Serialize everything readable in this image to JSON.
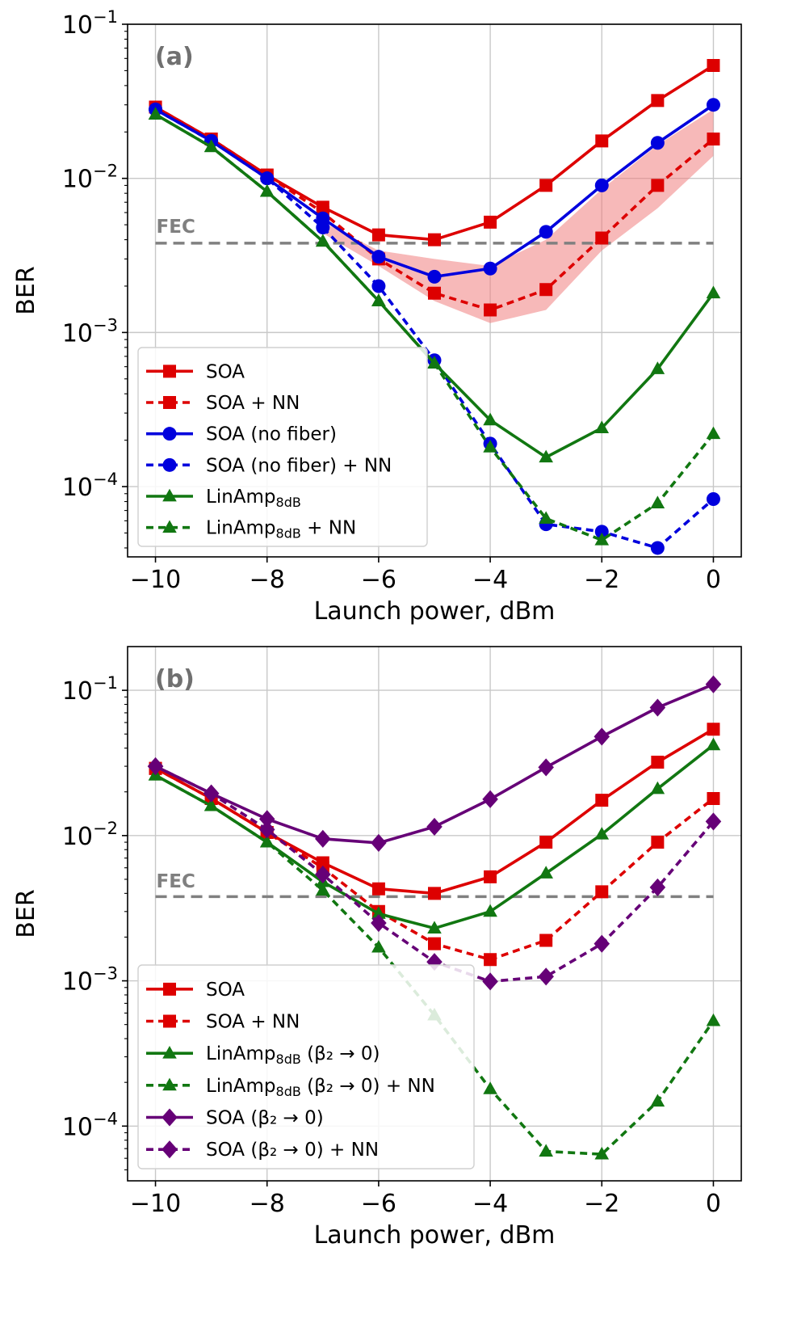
{
  "chart_data": [
    {
      "type": "line",
      "panel_label": "(a)",
      "xlabel": "Launch power, dBm",
      "ylabel": "BER",
      "yscale": "log",
      "xlim": [
        -10.5,
        0.5
      ],
      "ylim": [
        3.5e-05,
        0.1
      ],
      "grid": true,
      "xticks": [
        -10,
        -8,
        -6,
        -4,
        -2,
        0
      ],
      "xtick_labels": [
        "−10",
        "−8",
        "−6",
        "−4",
        "−2",
        "0"
      ],
      "yticks": [
        0.1,
        0.01,
        0.001,
        0.0001
      ],
      "ytick_labels": [
        {
          "base": "10",
          "exp": "−1"
        },
        {
          "base": "10",
          "exp": "−2"
        },
        {
          "base": "10",
          "exp": "−3"
        },
        {
          "base": "10",
          "exp": "−4"
        }
      ],
      "fec": {
        "label": "FEC",
        "value": 0.0038,
        "color": "#808080"
      },
      "band": {
        "color": "#f08080",
        "x": [
          -7,
          -6,
          -5,
          -4,
          -3,
          -2,
          -1,
          0
        ],
        "upper": [
          0.0052,
          0.0034,
          0.003,
          0.0027,
          0.004,
          0.0085,
          0.0165,
          0.028
        ],
        "lower": [
          0.0044,
          0.0027,
          0.0016,
          0.00115,
          0.0014,
          0.0034,
          0.0064,
          0.014
        ]
      },
      "legend_position": "lower-left",
      "series": [
        {
          "name": "SOA",
          "sub": "",
          "suffix": "",
          "color": "#dd0000",
          "marker": "square",
          "dashed": false,
          "x": [
            -10,
            -9,
            -8,
            -7,
            -6,
            -5,
            -4,
            -3,
            -2,
            -1,
            0
          ],
          "values": [
            0.029,
            0.018,
            0.0105,
            0.0065,
            0.0043,
            0.004,
            0.0052,
            0.009,
            0.0175,
            0.032,
            0.054
          ]
        },
        {
          "name": "SOA + NN",
          "sub": "",
          "suffix": "",
          "color": "#dd0000",
          "marker": "square",
          "dashed": true,
          "x": [
            -10,
            -9,
            -8,
            -7,
            -6,
            -5,
            -4,
            -3,
            -2,
            -1,
            0
          ],
          "values": [
            0.029,
            0.018,
            0.0105,
            0.006,
            0.003,
            0.0018,
            0.0014,
            0.0019,
            0.0041,
            0.009,
            0.018
          ]
        },
        {
          "name": "SOA (no fiber)",
          "sub": "",
          "suffix": "",
          "color": "#0000dd",
          "marker": "circle",
          "dashed": false,
          "x": [
            -10,
            -9,
            -8,
            -7,
            -6,
            -5,
            -4,
            -3,
            -2,
            -1,
            0
          ],
          "values": [
            0.028,
            0.0175,
            0.01,
            0.0055,
            0.0031,
            0.0023,
            0.0026,
            0.0045,
            0.009,
            0.017,
            0.03
          ]
        },
        {
          "name": "SOA (no fiber) + NN",
          "sub": "",
          "suffix": "",
          "color": "#0000dd",
          "marker": "circle",
          "dashed": true,
          "x": [
            -10,
            -9,
            -8,
            -7,
            -6,
            -5,
            -4,
            -3,
            -2,
            -1,
            0
          ],
          "values": [
            0.028,
            0.0175,
            0.01,
            0.0048,
            0.002,
            0.00066,
            0.00019,
            5.7e-05,
            5.1e-05,
            4e-05,
            8.3e-05
          ]
        },
        {
          "name": "LinAmp",
          "sub": "8dB",
          "suffix": "",
          "color": "#117711",
          "marker": "triangle",
          "dashed": false,
          "x": [
            -10,
            -9,
            -8,
            -7,
            -6,
            -5,
            -4,
            -3,
            -2,
            -1,
            0
          ],
          "values": [
            0.026,
            0.016,
            0.0082,
            0.0039,
            0.0016,
            0.00063,
            0.00027,
            0.000155,
            0.00024,
            0.00058,
            0.0018
          ]
        },
        {
          "name": "LinAmp",
          "sub": "8dB",
          "suffix": " + NN",
          "color": "#117711",
          "marker": "triangle",
          "dashed": true,
          "x": [
            -10,
            -9,
            -8,
            -7,
            -6,
            -5,
            -4,
            -3,
            -2,
            -1,
            0
          ],
          "values": [
            0.026,
            0.016,
            0.0082,
            0.0039,
            0.0016,
            0.00063,
            0.00018,
            6.2e-05,
            4.5e-05,
            7.8e-05,
            0.00022
          ]
        }
      ]
    },
    {
      "type": "line",
      "panel_label": "(b)",
      "xlabel": "Launch power, dBm",
      "ylabel": "BER",
      "yscale": "log",
      "xlim": [
        -10.5,
        0.5
      ],
      "ylim": [
        4.2e-05,
        0.2
      ],
      "grid": true,
      "xticks": [
        -10,
        -8,
        -6,
        -4,
        -2,
        0
      ],
      "xtick_labels": [
        "−10",
        "−8",
        "−6",
        "−4",
        "−2",
        "0"
      ],
      "yticks": [
        0.1,
        0.01,
        0.001,
        0.0001
      ],
      "ytick_labels": [
        {
          "base": "10",
          "exp": "−1"
        },
        {
          "base": "10",
          "exp": "−2"
        },
        {
          "base": "10",
          "exp": "−3"
        },
        {
          "base": "10",
          "exp": "−4"
        }
      ],
      "fec": {
        "label": "FEC",
        "value": 0.0038,
        "color": "#808080"
      },
      "legend_position": "lower-left",
      "series": [
        {
          "name": "SOA",
          "sub": "",
          "suffix": "",
          "color": "#dd0000",
          "marker": "square",
          "dashed": false,
          "x": [
            -10,
            -9,
            -8,
            -7,
            -6,
            -5,
            -4,
            -3,
            -2,
            -1,
            0
          ],
          "values": [
            0.029,
            0.018,
            0.0105,
            0.0065,
            0.0043,
            0.004,
            0.0052,
            0.009,
            0.0175,
            0.032,
            0.054
          ]
        },
        {
          "name": "SOA + NN",
          "sub": "",
          "suffix": "",
          "color": "#dd0000",
          "marker": "square",
          "dashed": true,
          "x": [
            -10,
            -9,
            -8,
            -7,
            -6,
            -5,
            -4,
            -3,
            -2,
            -1,
            0
          ],
          "values": [
            0.029,
            0.018,
            0.0105,
            0.006,
            0.003,
            0.0018,
            0.0014,
            0.0019,
            0.0041,
            0.009,
            0.018
          ]
        },
        {
          "name": "LinAmp",
          "sub": "8dB",
          "suffix": " (β₂ → 0)",
          "color": "#117711",
          "marker": "triangle",
          "dashed": false,
          "x": [
            -10,
            -9,
            -8,
            -7,
            -6,
            -5,
            -4,
            -3,
            -2,
            -1,
            0
          ],
          "values": [
            0.026,
            0.016,
            0.009,
            0.0048,
            0.0029,
            0.0023,
            0.003,
            0.0055,
            0.0102,
            0.021,
            0.042
          ]
        },
        {
          "name": "LinAmp",
          "sub": "8dB",
          "suffix": " (β₂ → 0) + NN",
          "color": "#117711",
          "marker": "triangle",
          "dashed": true,
          "x": [
            -10,
            -9,
            -8,
            -7,
            -6,
            -5,
            -4,
            -3,
            -2,
            -1,
            0
          ],
          "values": [
            0.026,
            0.016,
            0.009,
            0.0042,
            0.0017,
            0.00058,
            0.00018,
            6.7e-05,
            6.4e-05,
            0.000148,
            0.00053
          ]
        },
        {
          "name": "SOA (β₂ → 0)",
          "sub": "",
          "suffix": "",
          "color": "#660077",
          "marker": "diamond",
          "dashed": false,
          "x": [
            -10,
            -9,
            -8,
            -7,
            -6,
            -5,
            -4,
            -3,
            -2,
            -1,
            0
          ],
          "values": [
            0.03,
            0.0195,
            0.013,
            0.0095,
            0.0089,
            0.0115,
            0.0178,
            0.0295,
            0.048,
            0.076,
            0.11
          ]
        },
        {
          "name": "SOA (β₂ → 0) + NN",
          "sub": "",
          "suffix": "",
          "color": "#660077",
          "marker": "diamond",
          "dashed": true,
          "x": [
            -10,
            -9,
            -8,
            -7,
            -6,
            -5,
            -4,
            -3,
            -2,
            -1,
            0
          ],
          "values": [
            0.03,
            0.0195,
            0.011,
            0.0054,
            0.0025,
            0.00135,
            0.00099,
            0.00107,
            0.0018,
            0.0044,
            0.0125
          ]
        }
      ]
    }
  ]
}
